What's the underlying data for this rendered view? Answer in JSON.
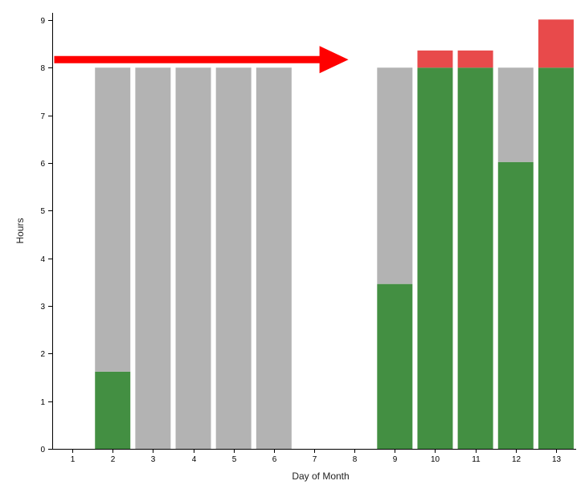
{
  "chart_data": {
    "type": "bar",
    "stacked": true,
    "xlabel": "Day of Month",
    "ylabel": "Hours",
    "x_ticks": [
      1,
      2,
      3,
      4,
      5,
      6,
      7,
      8,
      9,
      10,
      11,
      12,
      13
    ],
    "y_ticks": [
      0,
      1,
      2,
      3,
      4,
      5,
      6,
      7,
      8,
      9
    ],
    "ylim": [
      0,
      9.15
    ],
    "xlim": [
      0.5,
      13.5
    ],
    "grid": false,
    "legend": "none",
    "series": [
      {
        "color": "#438F42",
        "points": [
          {
            "day": 2,
            "value": 1.62
          },
          {
            "day": 9,
            "value": 3.46
          },
          {
            "day": 10,
            "value": 8
          },
          {
            "day": 11,
            "value": 8
          },
          {
            "day": 12,
            "value": 6.02
          },
          {
            "day": 13,
            "value": 8
          }
        ]
      },
      {
        "color": "#B3B3B3",
        "points": [
          {
            "day": 2,
            "value": 6.38
          },
          {
            "day": 3,
            "value": 8
          },
          {
            "day": 4,
            "value": 8
          },
          {
            "day": 5,
            "value": 8
          },
          {
            "day": 6,
            "value": 8
          },
          {
            "day": 9,
            "value": 4.54
          },
          {
            "day": 12,
            "value": 1.98
          }
        ]
      },
      {
        "color": "#E84A4B",
        "points": [
          {
            "day": 10,
            "value": 0.36
          },
          {
            "day": 11,
            "value": 0.36
          },
          {
            "day": 13,
            "value": 1.01
          }
        ]
      }
    ],
    "annotations": [
      {
        "type": "arrow",
        "color": "#FF0000",
        "x_start": 0.55,
        "x_end": 7.85,
        "y": 8.17
      }
    ]
  }
}
